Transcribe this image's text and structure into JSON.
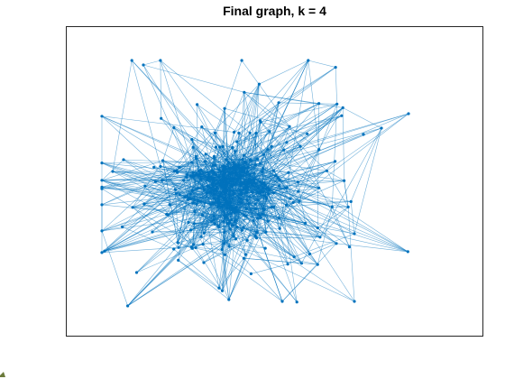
{
  "figure": {
    "title": "Final graph, k = 4",
    "colors": {
      "edge": "#0072BD",
      "node": "#0072BD",
      "axes_border": "#262626",
      "background": "#ffffff"
    }
  },
  "chart_data": {
    "type": "graph",
    "title": "Final graph, k = 4",
    "grid": false,
    "axis_ticks": false,
    "layout": "force-directed network",
    "nodes_approx": 400,
    "edges_approx": 1600,
    "edge_style": "thin semi-transparent lines",
    "node_style": "small filled dots"
  }
}
